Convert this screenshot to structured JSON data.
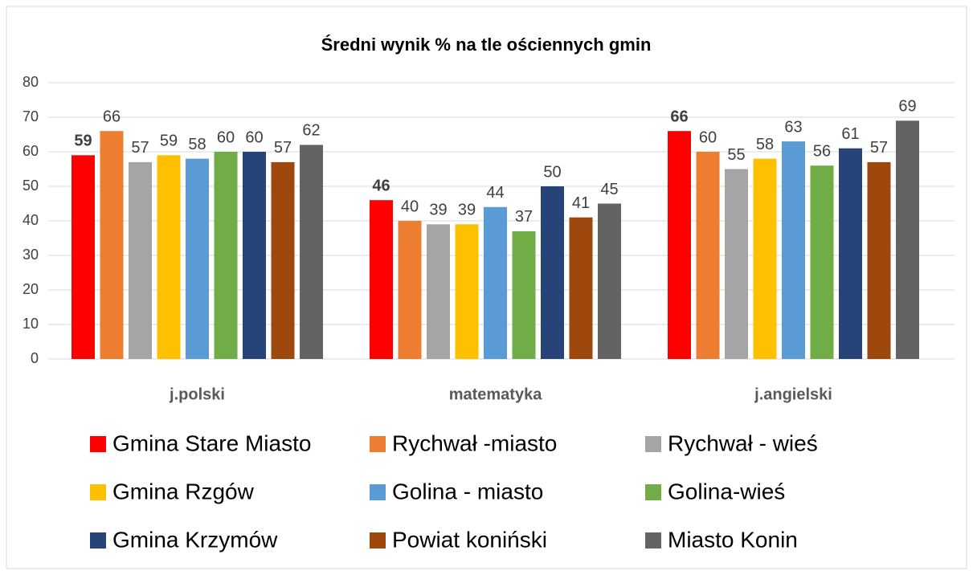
{
  "chart_data": {
    "type": "bar",
    "title": "Średni wynik % na tle ościennych gmin",
    "categories": [
      "j.polski",
      "matematyka",
      "j.angielski"
    ],
    "series": [
      {
        "name": "Gmina Stare Miasto",
        "color": "#ff0000",
        "values": [
          59,
          46,
          66
        ],
        "bold_labels": true
      },
      {
        "name": "Rychwał -miasto",
        "color": "#ed7d31",
        "values": [
          66,
          40,
          60
        ]
      },
      {
        "name": "Rychwał - wieś",
        "color": "#a5a5a5",
        "values": [
          57,
          39,
          55
        ]
      },
      {
        "name": "Gmina Rzgów",
        "color": "#ffc000",
        "values": [
          59,
          39,
          58
        ]
      },
      {
        "name": "Golina - miasto",
        "color": "#5b9bd5",
        "values": [
          58,
          44,
          63
        ]
      },
      {
        "name": "Golina-wieś",
        "color": "#70ad47",
        "values": [
          60,
          37,
          56
        ]
      },
      {
        "name": "Gmina Krzymów",
        "color": "#264478",
        "values": [
          60,
          50,
          61
        ]
      },
      {
        "name": "Powiat koniński",
        "color": "#9e480e",
        "values": [
          57,
          41,
          57
        ]
      },
      {
        "name": "Miasto Konin",
        "color": "#636363",
        "values": [
          62,
          45,
          69
        ]
      }
    ],
    "ylim": [
      0,
      80
    ],
    "yticks": [
      0,
      10,
      20,
      30,
      40,
      50,
      60,
      70,
      80
    ],
    "grid": true,
    "legend": "bottom"
  }
}
